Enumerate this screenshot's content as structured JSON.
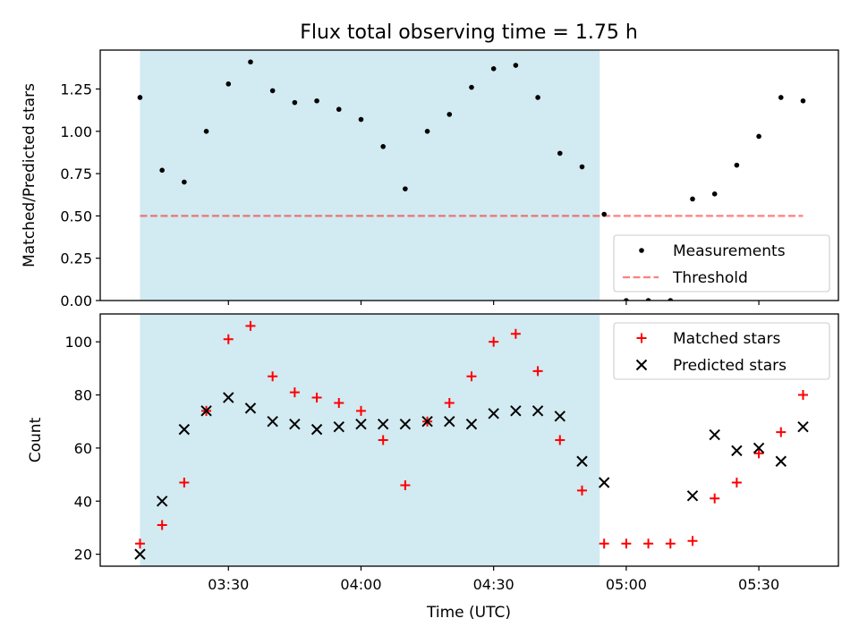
{
  "title": "Flux total observing time = 1.75 h",
  "xlabel": "Time (UTC)",
  "xticks": [
    "03:30",
    "04:00",
    "04:30",
    "05:00",
    "05:30"
  ],
  "colors": {
    "shade": "#add8e6",
    "threshold": "#ff0000",
    "matched": "#ff0000",
    "predicted": "#000000",
    "measurements": "#000000"
  },
  "chart_data": [
    {
      "type": "scatter",
      "panel": "top",
      "ylabel": "Matched/Predicted stars",
      "yticks": [
        "0.00",
        "0.25",
        "0.50",
        "0.75",
        "1.00",
        "1.25"
      ],
      "ylim": [
        0,
        1.48
      ],
      "xlim": [
        "03:01",
        "05:48"
      ],
      "shaded_interval": [
        "03:10",
        "04:54"
      ],
      "legend_position": "lower-right",
      "threshold": {
        "name": "Threshold",
        "value": 0.5,
        "x_range": [
          "03:10",
          "05:40"
        ],
        "style": "dashed"
      },
      "series": [
        {
          "name": "Measurements",
          "marker": "dot",
          "x": [
            "03:10",
            "03:15",
            "03:20",
            "03:25",
            "03:30",
            "03:35",
            "03:40",
            "03:45",
            "03:50",
            "03:55",
            "04:00",
            "04:05",
            "04:10",
            "04:15",
            "04:20",
            "04:25",
            "04:30",
            "04:35",
            "04:40",
            "04:45",
            "04:50",
            "04:55",
            "05:00",
            "05:05",
            "05:10",
            "05:15",
            "05:20",
            "05:25",
            "05:30",
            "05:35",
            "05:40"
          ],
          "y": [
            1.2,
            0.77,
            0.7,
            1.0,
            1.28,
            1.41,
            1.24,
            1.17,
            1.18,
            1.13,
            1.07,
            0.91,
            0.66,
            1.0,
            1.1,
            1.26,
            1.37,
            1.39,
            1.2,
            0.87,
            0.79,
            0.51,
            0.0,
            0.0,
            0.0,
            0.6,
            0.63,
            0.8,
            0.97,
            1.2,
            1.18
          ]
        }
      ]
    },
    {
      "type": "scatter",
      "panel": "bottom",
      "ylabel": "Count",
      "yticks": [
        "20",
        "40",
        "60",
        "80",
        "100"
      ],
      "ylim": [
        15.5,
        110.5
      ],
      "xlim": [
        "03:01",
        "05:48"
      ],
      "shaded_interval": [
        "03:10",
        "04:54"
      ],
      "legend_position": "upper-right",
      "series": [
        {
          "name": "Matched stars",
          "marker": "plus",
          "x": [
            "03:10",
            "03:15",
            "03:20",
            "03:25",
            "03:30",
            "03:35",
            "03:40",
            "03:45",
            "03:50",
            "03:55",
            "04:00",
            "04:05",
            "04:10",
            "04:15",
            "04:20",
            "04:25",
            "04:30",
            "04:35",
            "04:40",
            "04:45",
            "04:50",
            "04:55",
            "05:00",
            "05:05",
            "05:10",
            "05:15",
            "05:20",
            "05:25",
            "05:30",
            "05:35",
            "05:40"
          ],
          "y": [
            24,
            31,
            47,
            74,
            101,
            106,
            87,
            81,
            79,
            77,
            74,
            63,
            46,
            70,
            77,
            87,
            100,
            103,
            89,
            63,
            44,
            24,
            24,
            24,
            24,
            25,
            41,
            47,
            58,
            66,
            80
          ]
        },
        {
          "name": "Predicted stars",
          "marker": "x",
          "x": [
            "03:10",
            "03:15",
            "03:20",
            "03:25",
            "03:30",
            "03:35",
            "03:40",
            "03:45",
            "03:50",
            "03:55",
            "04:00",
            "04:05",
            "04:10",
            "04:15",
            "04:20",
            "04:25",
            "04:30",
            "04:35",
            "04:40",
            "04:45",
            "04:50",
            "04:55",
            "05:15",
            "05:20",
            "05:25",
            "05:30",
            "05:35",
            "05:40"
          ],
          "y": [
            20,
            40,
            67,
            74,
            79,
            75,
            70,
            69,
            67,
            68,
            69,
            69,
            69,
            70,
            70,
            69,
            73,
            74,
            74,
            72,
            55,
            47,
            42,
            65,
            59,
            60,
            55,
            68
          ]
        }
      ]
    }
  ]
}
